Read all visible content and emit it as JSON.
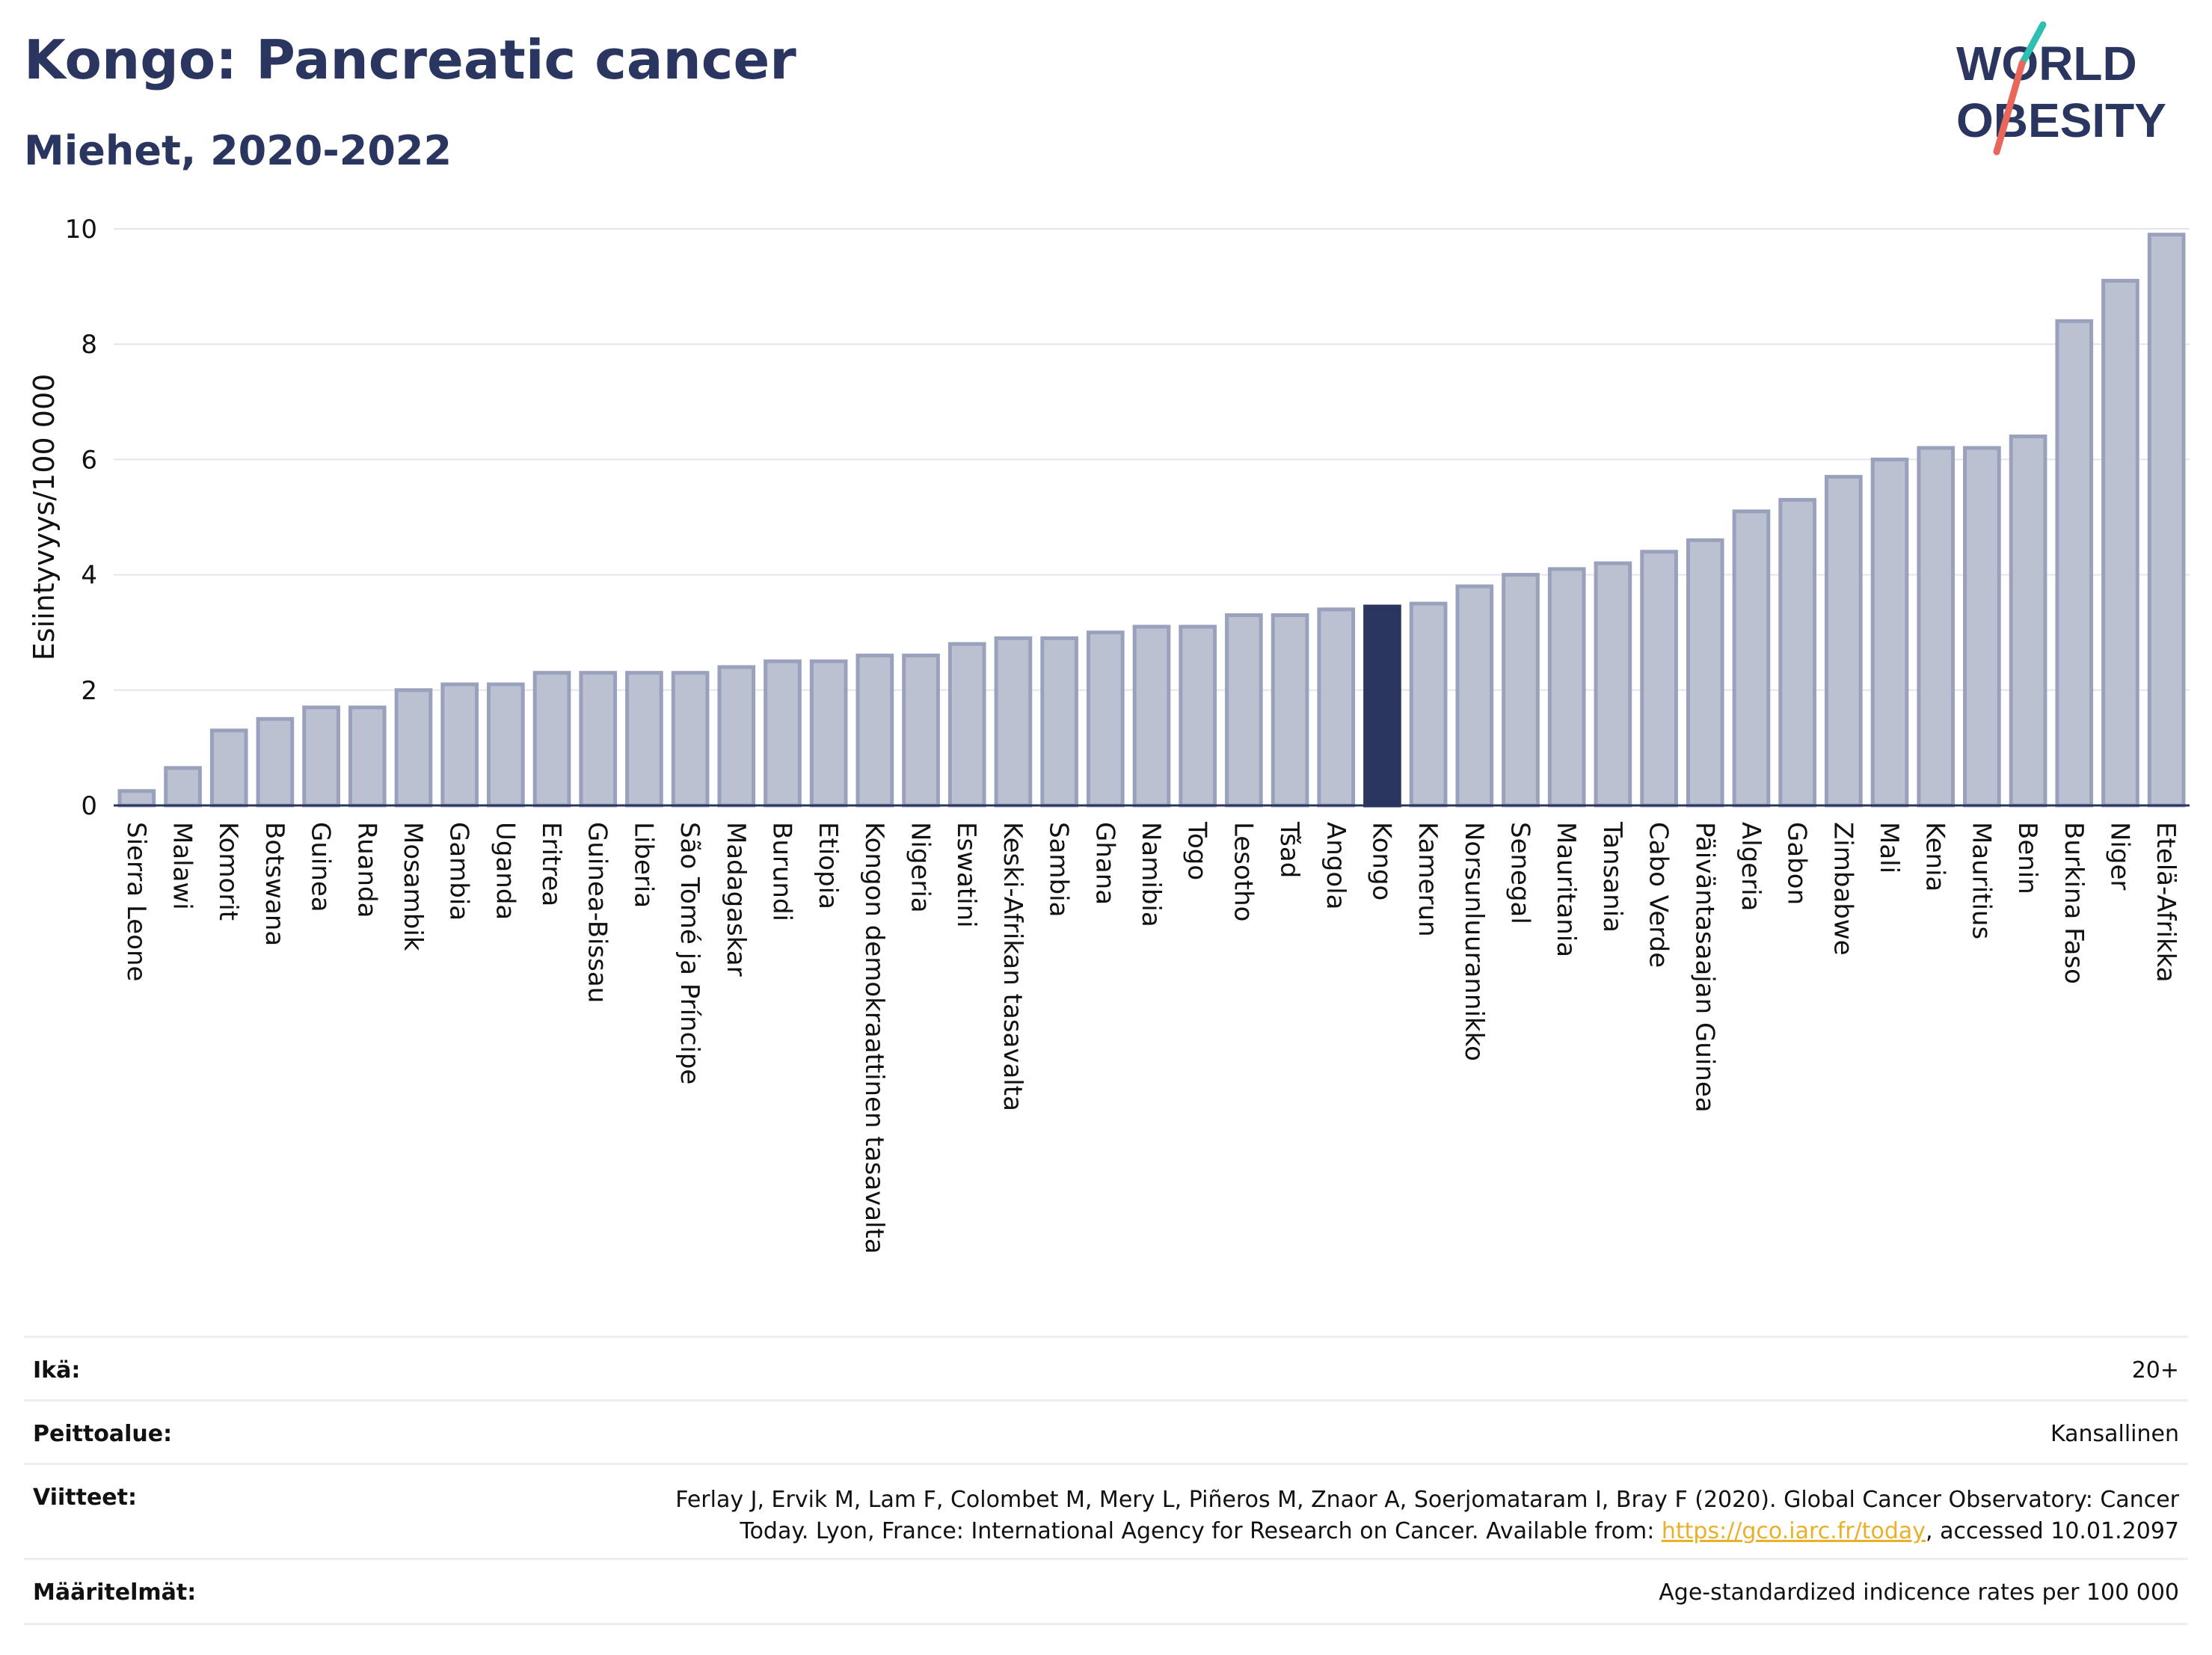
{
  "header": {
    "title": "Kongo: Pancreatic cancer",
    "subtitle": "Miehet, 2020-2022",
    "logo_text": "WORLD OBESITY"
  },
  "colors": {
    "bar": "#bcc1d1",
    "bar_border": "#9aa1bc",
    "highlight": "#2a3560",
    "grid": "#e3e5ec",
    "logo_navy": "#2a3560",
    "logo_teal": "#2cbfb2",
    "logo_coral": "#e8665a",
    "link": "#e9b12a"
  },
  "chart_data": {
    "type": "bar",
    "title": "Kongo: Pancreatic cancer",
    "subtitle": "Miehet, 2020-2022",
    "ylabel": "Esiintyvyys/100 000",
    "xlabel": "",
    "ylim": [
      0,
      10
    ],
    "yticks": [
      "0",
      "2",
      "4",
      "6",
      "8",
      "10"
    ],
    "grid": true,
    "highlight_category": "Kongo",
    "categories": [
      "Sierra Leone",
      "Malawi",
      "Komorit",
      "Botswana",
      "Guinea",
      "Ruanda",
      "Mosambik",
      "Gambia",
      "Uganda",
      "Eritrea",
      "Guinea-Bissau",
      "Liberia",
      "São Tomé ja Príncipe",
      "Madagaskar",
      "Burundi",
      "Etiopia",
      "Kongon demokraattinen tasavalta",
      "Nigeria",
      "Eswatini",
      "Keski-Afrikan tasavalta",
      "Sambia",
      "Ghana",
      "Namibia",
      "Togo",
      "Lesotho",
      "Tšad",
      "Angola",
      "Kongo",
      "Kamerun",
      "Norsunluurannikko",
      "Senegal",
      "Mauritania",
      "Tansania",
      "Cabo Verde",
      "Päiväntasaajan Guinea",
      "Algeria",
      "Gabon",
      "Zimbabwe",
      "Mali",
      "Kenia",
      "Mauritius",
      "Benin",
      "Burkina Faso",
      "Niger",
      "Etelä-Afrikka"
    ],
    "values": [
      0.25,
      0.65,
      1.3,
      1.5,
      1.7,
      1.7,
      2.0,
      2.1,
      2.1,
      2.3,
      2.3,
      2.3,
      2.3,
      2.4,
      2.5,
      2.5,
      2.6,
      2.6,
      2.8,
      2.9,
      2.9,
      3.0,
      3.1,
      3.1,
      3.3,
      3.3,
      3.4,
      3.45,
      3.5,
      3.8,
      4.0,
      4.1,
      4.2,
      4.4,
      4.6,
      5.1,
      5.3,
      5.7,
      6.0,
      6.2,
      6.2,
      6.4,
      8.4,
      9.1,
      9.9
    ]
  },
  "meta": {
    "age_label": "Ikä:",
    "age_value": "20+",
    "coverage_label": "Peittoalue:",
    "coverage_value": "Kansallinen",
    "refs_label": "Viitteet:",
    "refs_text_1": "Ferlay J, Ervik M, Lam F, Colombet M, Mery L, Piñeros M, Znaor A, Soerjomataram I, Bray F (2020). Global Cancer Observatory: Cancer Today. Lyon, France: International Agency for Research on Cancer. Available from: ",
    "refs_link": "https://gco.iarc.fr/today",
    "refs_text_2": ", accessed 10.01.2097",
    "defs_label": "Määritelmät:",
    "defs_value": "Age-standardized indicence rates per 100 000"
  }
}
